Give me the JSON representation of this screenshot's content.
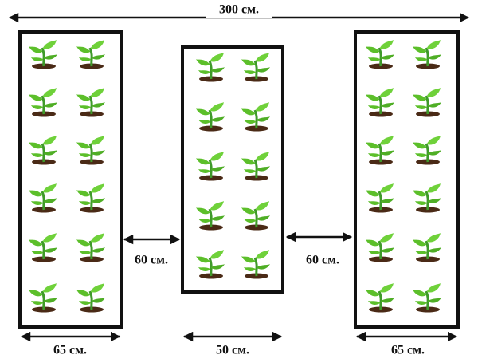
{
  "dimensions": {
    "total_width": "300 см.",
    "gap_left": "60 см.",
    "gap_right": "60 см.",
    "bed_left_width": "65 см.",
    "bed_middle_width": "50 см.",
    "bed_right_width": "65 см."
  }
}
